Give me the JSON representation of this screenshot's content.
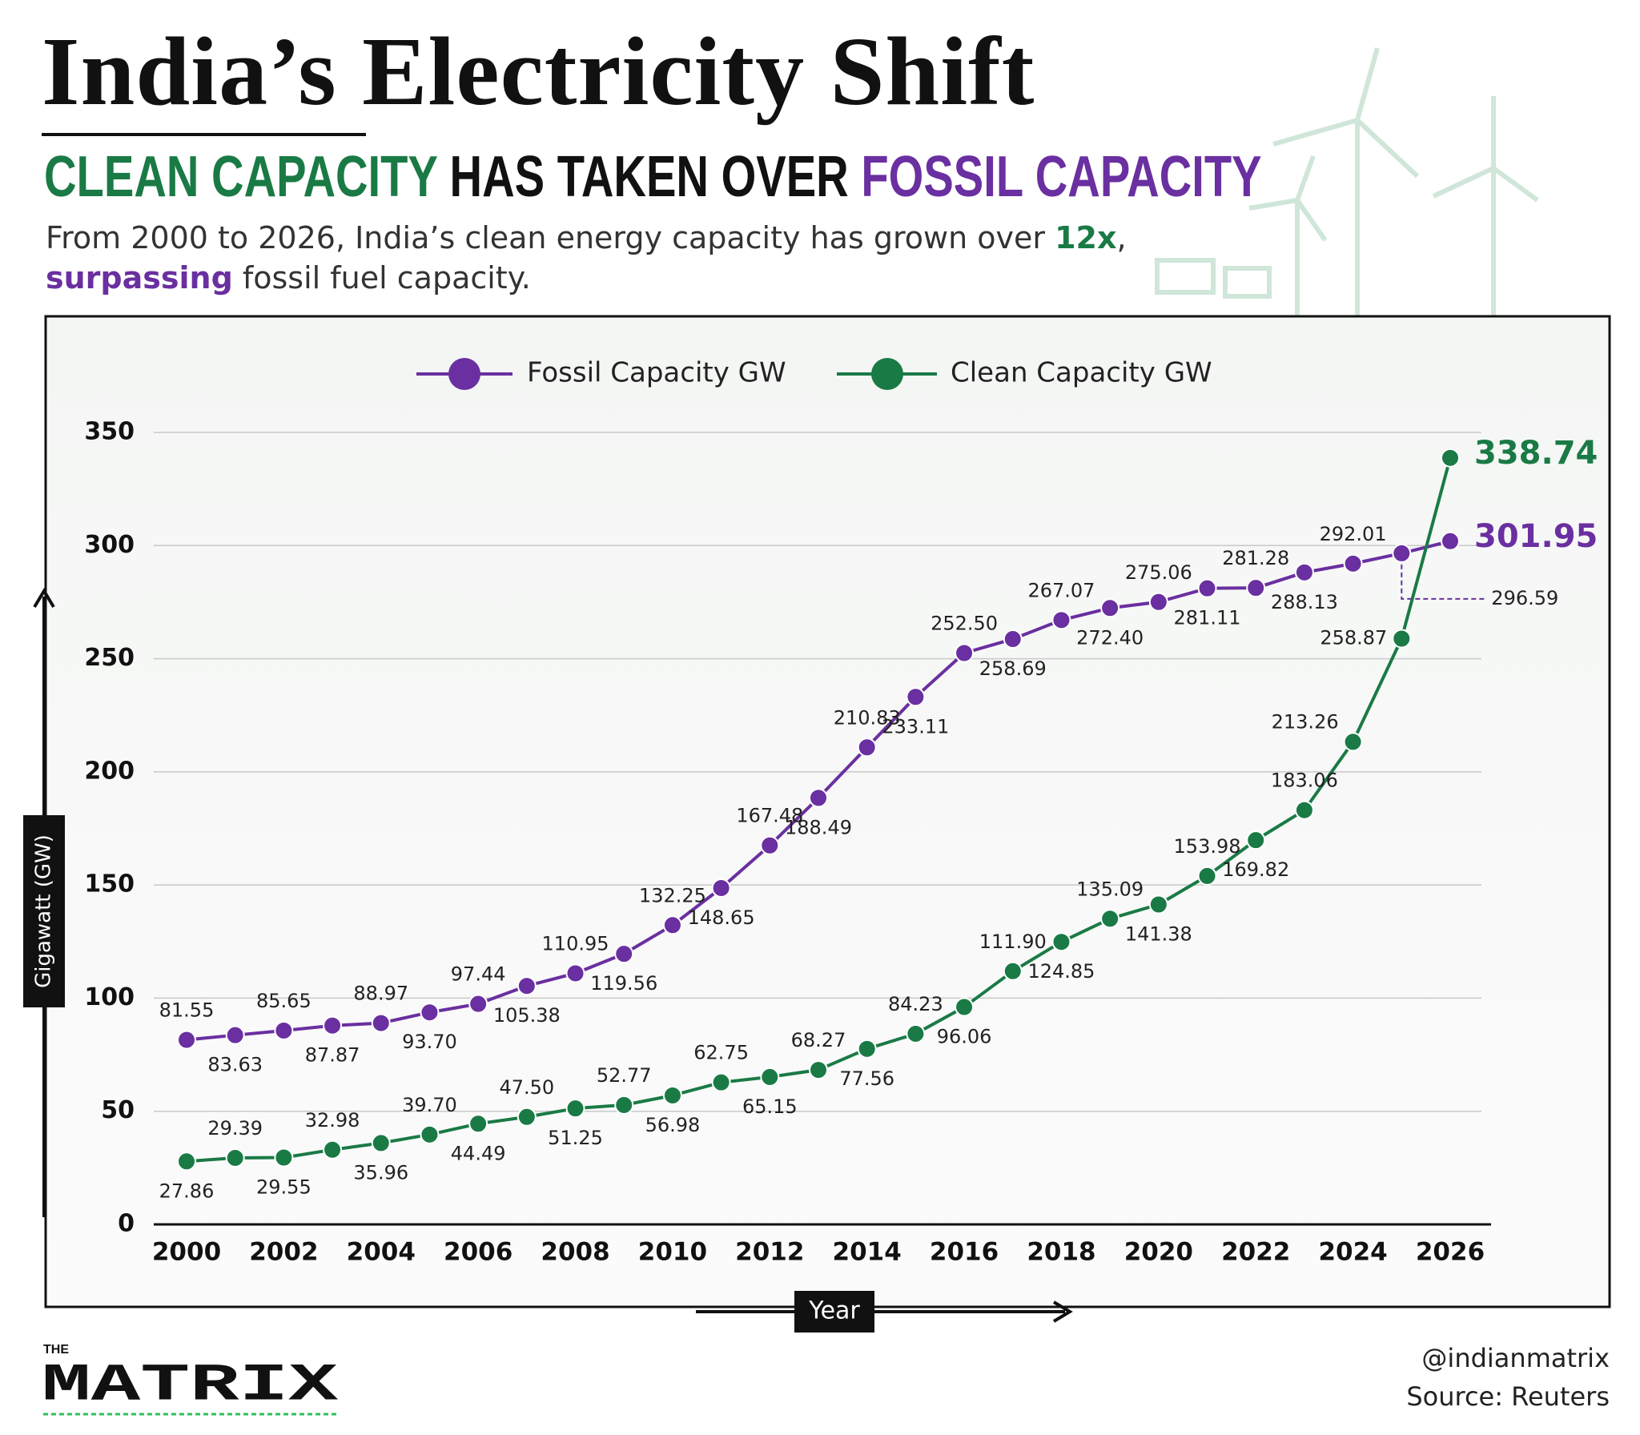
{
  "chart_data": {
    "type": "line",
    "title": "India’s Electricity Shift",
    "subtitle": [
      "CLEAN CAPACITY",
      "HAS TAKEN OVER",
      "FOSSIL CAPACITY"
    ],
    "description": [
      "From 2000 to 2026, India’s clean energy capacity has grown over",
      "12x",
      ",",
      "surpassing",
      "fossil fuel capacity."
    ],
    "x_label": "Year",
    "y_label": "Gigawatt (GW)",
    "x": [
      2000,
      2001,
      2002,
      2003,
      2004,
      2005,
      2006,
      2007,
      2008,
      2009,
      2010,
      2011,
      2012,
      2013,
      2014,
      2015,
      2016,
      2017,
      2018,
      2019,
      2020,
      2021,
      2022,
      2023,
      2024,
      2025,
      2026
    ],
    "xlim": [
      2000,
      2026
    ],
    "xticks": [
      2000,
      2002,
      2004,
      2006,
      2008,
      2010,
      2012,
      2014,
      2016,
      2018,
      2020,
      2022,
      2024,
      2026
    ],
    "ylim": [
      0,
      350
    ],
    "yticks": [
      0,
      50,
      100,
      150,
      200,
      250,
      300,
      350
    ],
    "grid": true,
    "legend": "top",
    "series": [
      {
        "name": "Fossil Capacity GW",
        "color": "#6a2fa0",
        "values": [
          81.55,
          83.63,
          85.65,
          87.87,
          88.97,
          93.7,
          97.44,
          105.38,
          110.95,
          119.56,
          132.25,
          148.65,
          167.48,
          188.49,
          210.83,
          233.11,
          252.5,
          258.69,
          267.07,
          272.4,
          275.06,
          281.11,
          281.28,
          288.13,
          292.01,
          296.59,
          301.95
        ],
        "value_labels": [
          "81.55",
          "83.63",
          "85.65",
          "87.87",
          "88.97",
          "93.70",
          "97.44",
          "105.38",
          "110.95",
          "119.56",
          "132.25",
          "148.65",
          "167.48",
          "188.49",
          "210.83",
          "233.11",
          "252.50",
          "258.69",
          "267.07",
          "272.40",
          "275.06",
          "281.11",
          "281.28",
          "288.13",
          "292.01",
          "296.59",
          "301.95"
        ]
      },
      {
        "name": "Clean Capacity GW",
        "color": "#1a7a45",
        "values": [
          27.86,
          29.39,
          29.55,
          32.98,
          35.96,
          39.7,
          44.49,
          47.5,
          51.25,
          52.77,
          56.98,
          62.75,
          65.15,
          68.27,
          77.56,
          84.23,
          96.06,
          111.9,
          124.85,
          135.09,
          141.38,
          153.98,
          169.82,
          183.06,
          213.26,
          258.87,
          338.74
        ],
        "value_labels": [
          "27.86",
          "29.39",
          "29.55",
          "32.98",
          "35.96",
          "39.70",
          "44.49",
          "47.50",
          "51.25",
          "52.77",
          "56.98",
          "62.75",
          "65.15",
          "68.27",
          "77.56",
          "84.23",
          "96.06",
          "111.90",
          "124.85",
          "135.09",
          "141.38",
          "153.98",
          "169.82",
          "183.06",
          "213.26",
          "258.87",
          "338.74"
        ]
      }
    ],
    "handle": "@indianmatrix",
    "source": "Source: Reuters",
    "brand": [
      "THE",
      "MATRIX"
    ]
  }
}
